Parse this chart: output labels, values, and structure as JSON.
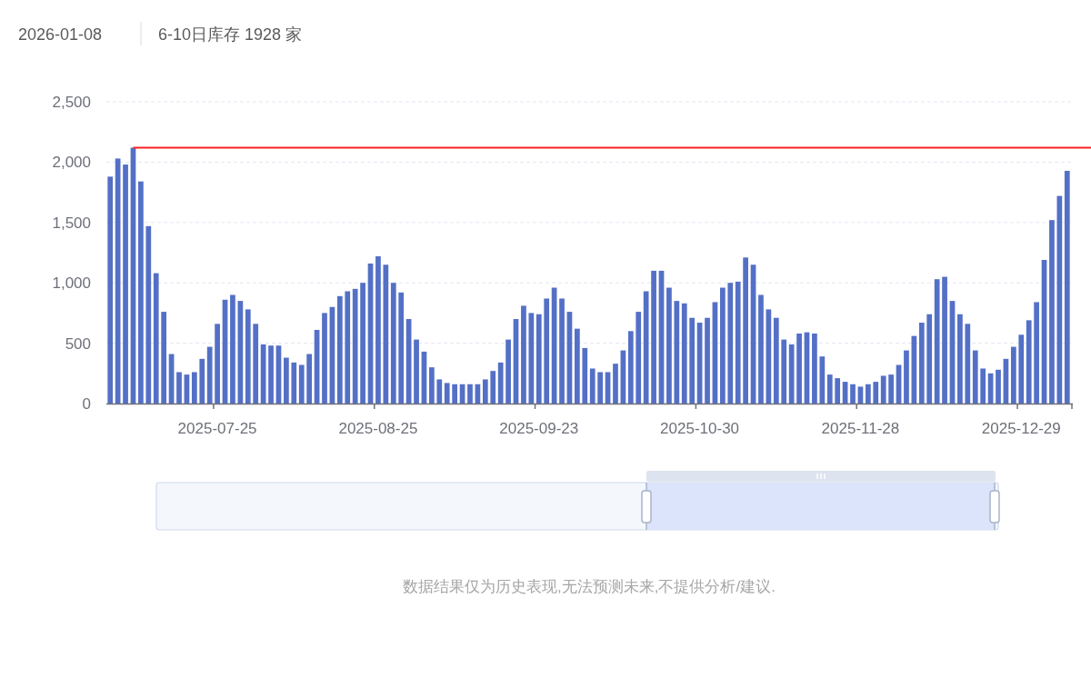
{
  "chart_data": {
    "type": "bar",
    "title": "2026-01-08",
    "subtitle": "6-10日库存 1928 家",
    "categories": [
      null,
      null,
      null,
      null,
      null,
      null,
      null,
      null,
      null,
      null,
      null,
      null,
      null,
      null,
      "2025-07-25",
      null,
      null,
      null,
      null,
      null,
      null,
      null,
      null,
      null,
      null,
      null,
      null,
      null,
      null,
      null,
      null,
      null,
      null,
      null,
      null,
      "2025-08-25",
      null,
      null,
      null,
      null,
      null,
      null,
      null,
      null,
      null,
      null,
      null,
      null,
      null,
      null,
      null,
      null,
      null,
      null,
      null,
      null,
      "2025-09-23",
      null,
      null,
      null,
      null,
      null,
      null,
      null,
      null,
      null,
      null,
      null,
      null,
      null,
      null,
      null,
      null,
      null,
      null,
      null,
      null,
      "2025-10-30",
      null,
      null,
      null,
      null,
      null,
      null,
      null,
      null,
      null,
      null,
      null,
      null,
      null,
      null,
      null,
      null,
      null,
      null,
      null,
      null,
      "2025-11-28",
      null,
      null,
      null,
      null,
      null,
      null,
      null,
      null,
      null,
      null,
      null,
      null,
      null,
      null,
      null,
      null,
      null,
      null,
      null,
      null,
      "2025-12-29",
      null,
      null,
      null,
      null,
      null,
      null
    ],
    "series": [
      {
        "color": "#5470c6",
        "values": [
          1880,
          2030,
          1980,
          2120,
          1840,
          1470,
          1080,
          760,
          410,
          260,
          240,
          260,
          370,
          470,
          660,
          860,
          900,
          850,
          780,
          660,
          490,
          480,
          480,
          380,
          340,
          320,
          410,
          610,
          750,
          800,
          890,
          930,
          950,
          1000,
          1160,
          1220,
          1150,
          1000,
          920,
          700,
          530,
          430,
          300,
          200,
          170,
          160,
          160,
          160,
          160,
          200,
          270,
          340,
          530,
          700,
          810,
          750,
          740,
          870,
          960,
          870,
          760,
          620,
          460,
          290,
          260,
          260,
          330,
          440,
          600,
          760,
          930,
          1100,
          1100,
          960,
          850,
          830,
          710,
          670,
          710,
          840,
          960,
          1000,
          1010,
          1210,
          1150,
          900,
          780,
          710,
          530,
          490,
          580,
          590,
          580,
          390,
          240,
          210,
          180,
          160,
          140,
          160,
          180,
          230,
          240,
          320,
          440,
          560,
          670,
          740,
          1030,
          1050,
          850,
          740,
          660,
          440,
          290,
          250,
          280,
          370,
          470,
          570,
          690,
          840,
          1190,
          1520,
          1720,
          1928
        ]
      }
    ],
    "ylim": [
      0,
      2500
    ],
    "yticks": [
      0,
      500,
      {
        "value": 1000,
        "label": "1,000"
      },
      {
        "value": 1500,
        "label": "1,500"
      },
      {
        "value": 2000,
        "label": "2,000"
      },
      {
        "value": 2500,
        "label": "2,500"
      }
    ],
    "grid": "y",
    "ref_lines": [
      {
        "axis": "y",
        "value": 2120,
        "color": "#ff2020"
      }
    ],
    "annotations": [
      "数据结果仅为历史表现,无法预测未来,不提供分析/建议."
    ]
  }
}
